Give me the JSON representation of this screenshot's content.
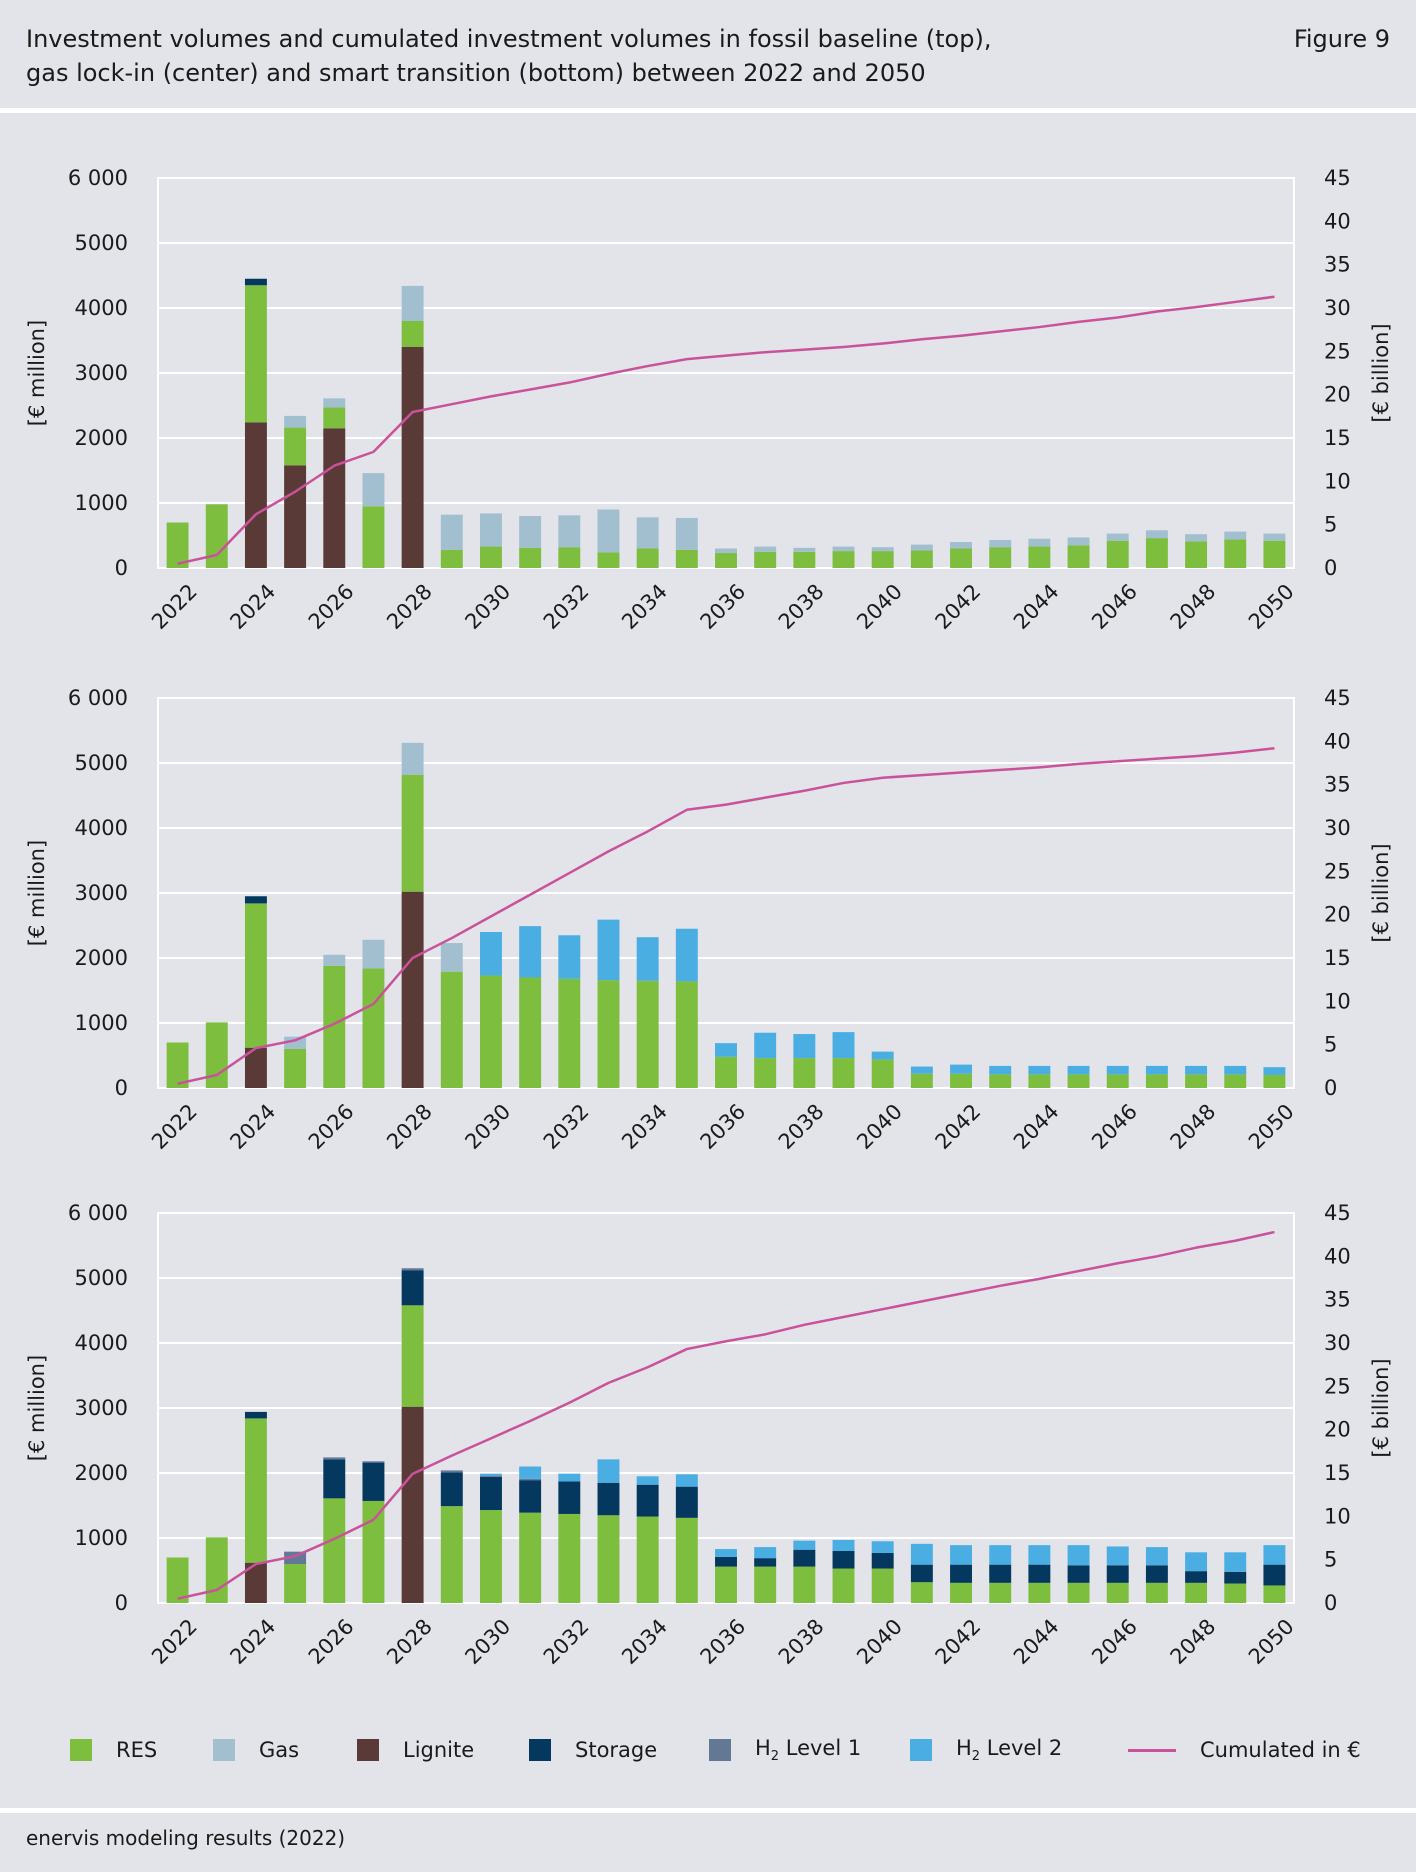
{
  "header": {
    "title_line1": "Investment volumes and cumulated investment volumes in fossil baseline (top),",
    "title_line2": "gas lock-in (center) and smart transition (bottom) between 2022 and 2050",
    "figure_label": "Figure 9"
  },
  "footer": {
    "source": "enervis modeling results (2022)"
  },
  "colors": {
    "RES": "#7ebe3f",
    "Gas": "#a2bfd0",
    "Lignite": "#5a3a36",
    "Storage": "#05385f",
    "H2 Level 1": "#637895",
    "H2 Level 2": "#4baee3",
    "Cumulated": "#c9529b"
  },
  "legend": [
    {
      "key": "RES",
      "label": "RES",
      "type": "box"
    },
    {
      "key": "Gas",
      "label": "Gas",
      "type": "box"
    },
    {
      "key": "Lignite",
      "label": "Lignite",
      "type": "box"
    },
    {
      "key": "Storage",
      "label": "Storage",
      "type": "box"
    },
    {
      "key": "H2 Level 1",
      "label": "H",
      "sub": "2",
      "rest": " Level 1",
      "type": "box"
    },
    {
      "key": "H2 Level 2",
      "label": "H",
      "sub": "2",
      "rest": " Level 2",
      "type": "box"
    },
    {
      "key": "Cumulated",
      "label": "Cumulated in €",
      "type": "line"
    }
  ],
  "chart_data": [
    {
      "type": "bar",
      "stacked": true,
      "x": [
        2022,
        2023,
        2024,
        2025,
        2026,
        2027,
        2028,
        2029,
        2030,
        2031,
        2032,
        2033,
        2034,
        2035,
        2036,
        2037,
        2038,
        2039,
        2040,
        2041,
        2042,
        2043,
        2044,
        2045,
        2046,
        2047,
        2048,
        2049,
        2050
      ],
      "x_tick_labels": [
        "2022",
        "2024",
        "2026",
        "2028",
        "2030",
        "2032",
        "2034",
        "2036",
        "2038",
        "2040",
        "2042",
        "2044",
        "2046",
        "2048",
        "2050"
      ],
      "ylabel": "[€ million]",
      "y2label": "[€ billion]",
      "ylim": [
        0,
        6000
      ],
      "y_ticks": [
        "0",
        "1000",
        "2000",
        "3000",
        "4000",
        "5000",
        "6 000"
      ],
      "y2lim": [
        0,
        45
      ],
      "y2_ticks": [
        "0",
        "5",
        "10",
        "15",
        "20",
        "25",
        "30",
        "35",
        "40",
        "45"
      ],
      "grid": true,
      "series": [
        {
          "name": "Lignite",
          "values": [
            0,
            0,
            2240,
            1580,
            2150,
            0,
            3400,
            0,
            0,
            0,
            0,
            0,
            0,
            0,
            0,
            0,
            0,
            0,
            0,
            0,
            0,
            0,
            0,
            0,
            0,
            0,
            0,
            0,
            0
          ]
        },
        {
          "name": "RES",
          "values": [
            700,
            980,
            2110,
            580,
            320,
            950,
            400,
            280,
            330,
            310,
            320,
            240,
            300,
            280,
            230,
            250,
            250,
            260,
            260,
            270,
            300,
            320,
            330,
            350,
            420,
            460,
            410,
            440,
            420
          ]
        },
        {
          "name": "Gas",
          "values": [
            0,
            0,
            0,
            180,
            140,
            510,
            540,
            540,
            510,
            490,
            490,
            660,
            480,
            490,
            70,
            80,
            60,
            70,
            60,
            90,
            100,
            110,
            120,
            120,
            110,
            120,
            110,
            120,
            110
          ]
        },
        {
          "name": "Storage",
          "values": [
            0,
            0,
            100,
            0,
            0,
            0,
            0,
            0,
            0,
            0,
            0,
            0,
            0,
            0,
            0,
            0,
            0,
            0,
            0,
            0,
            0,
            0,
            0,
            0,
            0,
            0,
            0,
            0,
            0
          ]
        }
      ],
      "cumulated": [
        0.5,
        1.5,
        6.2,
        8.8,
        11.8,
        13.4,
        18.0,
        18.9,
        19.8,
        20.6,
        21.4,
        22.4,
        23.3,
        24.1,
        24.5,
        24.9,
        25.2,
        25.5,
        25.9,
        26.4,
        26.8,
        27.3,
        27.8,
        28.4,
        28.9,
        29.6,
        30.1,
        30.7,
        31.3
      ]
    },
    {
      "type": "bar",
      "stacked": true,
      "x": [
        2022,
        2023,
        2024,
        2025,
        2026,
        2027,
        2028,
        2029,
        2030,
        2031,
        2032,
        2033,
        2034,
        2035,
        2036,
        2037,
        2038,
        2039,
        2040,
        2041,
        2042,
        2043,
        2044,
        2045,
        2046,
        2047,
        2048,
        2049,
        2050
      ],
      "x_tick_labels": [
        "2022",
        "2024",
        "2026",
        "2028",
        "2030",
        "2032",
        "2034",
        "2036",
        "2038",
        "2040",
        "2042",
        "2044",
        "2046",
        "2048",
        "2050"
      ],
      "ylabel": "[€ million]",
      "y2label": "[€ billion]",
      "ylim": [
        0,
        6000
      ],
      "y_ticks": [
        "0",
        "1000",
        "2000",
        "3000",
        "4000",
        "5000",
        "6 000"
      ],
      "y2lim": [
        0,
        45
      ],
      "y2_ticks": [
        "0",
        "5",
        "10",
        "15",
        "20",
        "25",
        "30",
        "35",
        "40",
        "45"
      ],
      "grid": true,
      "series": [
        {
          "name": "Lignite",
          "values": [
            0,
            0,
            620,
            0,
            0,
            0,
            3020,
            0,
            0,
            0,
            0,
            0,
            0,
            0,
            0,
            0,
            0,
            0,
            0,
            0,
            0,
            0,
            0,
            0,
            0,
            0,
            0,
            0,
            0
          ]
        },
        {
          "name": "RES",
          "values": [
            700,
            1010,
            2220,
            600,
            1880,
            1840,
            1800,
            1790,
            1730,
            1700,
            1680,
            1660,
            1650,
            1640,
            480,
            460,
            460,
            460,
            440,
            220,
            220,
            210,
            210,
            210,
            210,
            210,
            210,
            210,
            200
          ]
        },
        {
          "name": "Gas",
          "values": [
            0,
            0,
            0,
            190,
            170,
            440,
            490,
            440,
            0,
            0,
            0,
            0,
            0,
            0,
            0,
            0,
            0,
            0,
            0,
            0,
            0,
            0,
            0,
            0,
            0,
            0,
            0,
            0,
            0
          ]
        },
        {
          "name": "Storage",
          "values": [
            0,
            0,
            110,
            0,
            0,
            0,
            0,
            0,
            0,
            0,
            0,
            0,
            0,
            0,
            0,
            0,
            0,
            0,
            0,
            0,
            0,
            0,
            0,
            0,
            0,
            0,
            0,
            0,
            0
          ]
        },
        {
          "name": "H2 Level 2",
          "values": [
            0,
            0,
            0,
            0,
            0,
            0,
            0,
            0,
            670,
            790,
            670,
            930,
            670,
            810,
            210,
            390,
            370,
            400,
            120,
            110,
            140,
            130,
            130,
            130,
            130,
            130,
            130,
            130,
            120
          ]
        }
      ],
      "cumulated": [
        0.5,
        1.5,
        4.6,
        5.5,
        7.4,
        9.7,
        15.0,
        17.3,
        19.8,
        22.3,
        24.8,
        27.3,
        29.6,
        32.1,
        32.7,
        33.5,
        34.3,
        35.2,
        35.8,
        36.1,
        36.4,
        36.7,
        37.0,
        37.4,
        37.7,
        38.0,
        38.3,
        38.7,
        39.2
      ]
    },
    {
      "type": "bar",
      "stacked": true,
      "x": [
        2022,
        2023,
        2024,
        2025,
        2026,
        2027,
        2028,
        2029,
        2030,
        2031,
        2032,
        2033,
        2034,
        2035,
        2036,
        2037,
        2038,
        2039,
        2040,
        2041,
        2042,
        2043,
        2044,
        2045,
        2046,
        2047,
        2048,
        2049,
        2050
      ],
      "x_tick_labels": [
        "2022",
        "2024",
        "2026",
        "2028",
        "2030",
        "2032",
        "2034",
        "2036",
        "2038",
        "2040",
        "2042",
        "2044",
        "2046",
        "2048",
        "2050"
      ],
      "ylabel": "[€ million]",
      "y2label": "[€ billion]",
      "ylim": [
        0,
        6000
      ],
      "y_ticks": [
        "0",
        "1000",
        "2000",
        "3000",
        "4000",
        "5000",
        "6 000"
      ],
      "y2lim": [
        0,
        45
      ],
      "y2_ticks": [
        "0",
        "5",
        "10",
        "15",
        "20",
        "25",
        "30",
        "35",
        "40",
        "45"
      ],
      "grid": true,
      "series": [
        {
          "name": "Lignite",
          "values": [
            0,
            0,
            620,
            0,
            0,
            0,
            3020,
            0,
            0,
            0,
            0,
            0,
            0,
            0,
            0,
            0,
            0,
            0,
            0,
            0,
            0,
            0,
            0,
            0,
            0,
            0,
            0,
            0,
            0
          ]
        },
        {
          "name": "RES",
          "values": [
            700,
            1010,
            2220,
            600,
            1610,
            1570,
            1560,
            1490,
            1430,
            1390,
            1370,
            1350,
            1330,
            1310,
            560,
            560,
            560,
            530,
            530,
            320,
            310,
            310,
            310,
            310,
            310,
            310,
            310,
            300,
            270
          ]
        },
        {
          "name": "Storage",
          "values": [
            0,
            0,
            100,
            0,
            600,
            590,
            540,
            520,
            510,
            500,
            500,
            500,
            490,
            480,
            150,
            130,
            260,
            270,
            240,
            270,
            280,
            280,
            280,
            270,
            270,
            270,
            180,
            180,
            320
          ]
        },
        {
          "name": "H2 Level 1",
          "values": [
            0,
            0,
            0,
            190,
            30,
            20,
            30,
            30,
            20,
            20,
            0,
            0,
            0,
            0,
            0,
            0,
            0,
            0,
            0,
            0,
            0,
            0,
            0,
            0,
            0,
            0,
            0,
            0,
            0
          ]
        },
        {
          "name": "H2 Level 2",
          "values": [
            0,
            0,
            0,
            0,
            0,
            0,
            0,
            0,
            30,
            190,
            120,
            360,
            130,
            190,
            120,
            170,
            140,
            170,
            180,
            320,
            300,
            300,
            300,
            310,
            290,
            280,
            290,
            300,
            300
          ]
        }
      ],
      "cumulated": [
        0.5,
        1.5,
        4.5,
        5.4,
        7.4,
        9.6,
        14.9,
        17.0,
        19.0,
        21.0,
        23.1,
        25.4,
        27.2,
        29.3,
        30.2,
        31.0,
        32.1,
        33.0,
        33.9,
        34.8,
        35.7,
        36.6,
        37.4,
        38.3,
        39.2,
        40.0,
        41.0,
        41.8,
        42.8
      ]
    }
  ]
}
